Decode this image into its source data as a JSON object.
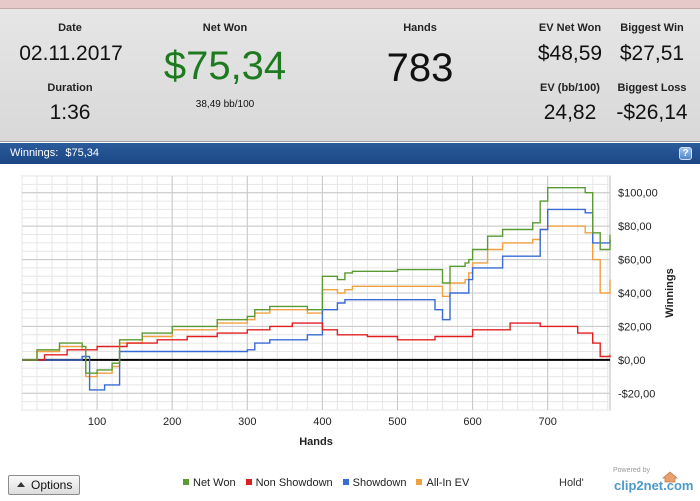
{
  "stats": {
    "date_label": "Date",
    "date_value": "02.11.2017",
    "duration_label": "Duration",
    "duration_value": "1:36",
    "net_won_label": "Net Won",
    "net_won_value": "$75,34",
    "bb_per_100": "38,49 bb/100",
    "hands_label": "Hands",
    "hands_value": "783",
    "ev_net_won_label": "EV Net Won",
    "ev_net_won_value": "$48,59",
    "biggest_win_label": "Biggest Win",
    "biggest_win_value": "$27,51",
    "ev_bb_label": "EV (bb/100)",
    "ev_bb_value": "24,82",
    "biggest_loss_label": "Biggest Loss",
    "biggest_loss_value": "-$26,14",
    "net_won_color": "#1e7a1e"
  },
  "title_bar": {
    "label": "Winnings:",
    "value": "$75,34",
    "help_glyph": "?"
  },
  "footer": {
    "options_label": "Options",
    "game_label": "Hold'",
    "powered_by": "Powered by",
    "brand": "clip2net.com"
  },
  "chart_data": {
    "type": "line",
    "xlabel": "Hands",
    "ylabel": "Winnings",
    "xlim": [
      0,
      783
    ],
    "ylim": [
      -30,
      110
    ],
    "x_ticks": [
      100,
      200,
      300,
      400,
      500,
      600,
      700
    ],
    "y_ticks": [
      -20,
      0,
      20,
      40,
      60,
      80,
      100
    ],
    "y_tick_labels": [
      "-$20,00",
      "$0,00",
      "$20,00",
      "$40,00",
      "$60,00",
      "$80,00",
      "$100,00"
    ],
    "grid": true,
    "legend_position": "bottom",
    "series": [
      {
        "name": "Net Won",
        "color": "#5a9a32",
        "x": [
          0,
          20,
          50,
          80,
          85,
          100,
          120,
          130,
          160,
          200,
          260,
          300,
          310,
          330,
          380,
          400,
          420,
          430,
          440,
          500,
          560,
          570,
          590,
          595,
          600,
          620,
          640,
          680,
          690,
          700,
          750,
          760,
          770,
          783
        ],
        "y": [
          0,
          6,
          10,
          8,
          -8,
          -6,
          -2,
          12,
          16,
          20,
          24,
          26,
          30,
          32,
          30,
          50,
          48,
          52,
          53,
          54,
          46,
          56,
          58,
          60,
          66,
          74,
          78,
          82,
          95,
          103,
          100,
          76,
          66,
          75
        ]
      },
      {
        "name": "Non Showdown",
        "color": "#e02020",
        "x": [
          0,
          30,
          60,
          100,
          140,
          180,
          220,
          260,
          300,
          330,
          360,
          400,
          420,
          460,
          500,
          550,
          600,
          650,
          690,
          740,
          760,
          770,
          783
        ],
        "y": [
          0,
          3,
          6,
          8,
          10,
          12,
          14,
          16,
          18,
          20,
          22,
          18,
          15,
          14,
          12,
          14,
          18,
          22,
          20,
          16,
          10,
          2,
          3
        ]
      },
      {
        "name": "Showdown",
        "color": "#3a6ad6",
        "x": [
          0,
          80,
          90,
          110,
          130,
          200,
          300,
          310,
          330,
          380,
          400,
          420,
          430,
          500,
          550,
          560,
          570,
          595,
          600,
          640,
          690,
          700,
          750,
          760,
          783
        ],
        "y": [
          0,
          2,
          -18,
          -15,
          5,
          5,
          6,
          10,
          12,
          15,
          30,
          34,
          36,
          36,
          30,
          24,
          40,
          48,
          55,
          62,
          78,
          90,
          88,
          70,
          72
        ]
      },
      {
        "name": "All-In EV",
        "color": "#f0a040",
        "x": [
          0,
          20,
          50,
          80,
          85,
          100,
          120,
          130,
          160,
          200,
          260,
          300,
          310,
          330,
          380,
          400,
          420,
          430,
          440,
          500,
          560,
          570,
          590,
          595,
          600,
          620,
          640,
          680,
          690,
          700,
          750,
          760,
          770,
          783
        ],
        "y": [
          0,
          5,
          8,
          6,
          -10,
          -8,
          -4,
          10,
          14,
          18,
          22,
          24,
          28,
          30,
          28,
          42,
          40,
          42,
          44,
          44,
          38,
          46,
          48,
          52,
          58,
          66,
          70,
          72,
          78,
          80,
          76,
          60,
          40,
          48
        ]
      }
    ]
  }
}
